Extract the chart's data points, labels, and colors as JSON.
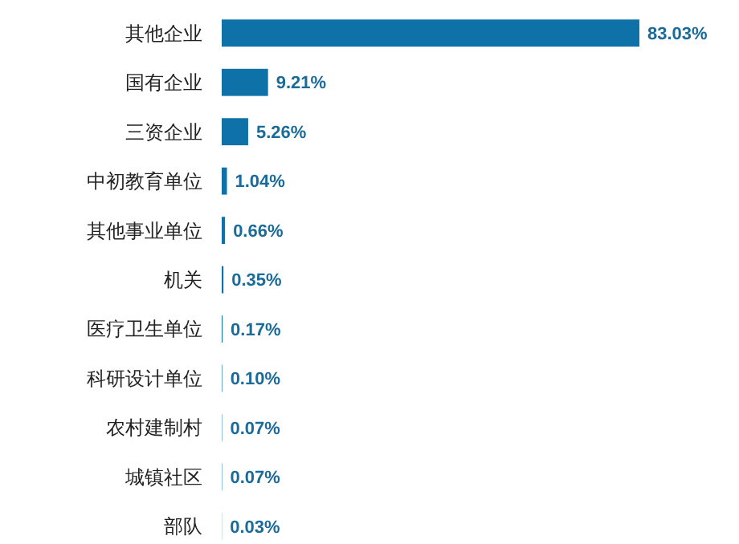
{
  "chart_data": {
    "type": "bar",
    "orientation": "horizontal",
    "categories": [
      "其他企业",
      "国有企业",
      "三资企业",
      "中初教育单位",
      "其他事业单位",
      "机关",
      "医疗卫生单位",
      "科研设计单位",
      "农村建制村",
      "城镇社区",
      "部队"
    ],
    "values": [
      83.03,
      9.21,
      5.26,
      1.04,
      0.66,
      0.35,
      0.17,
      0.1,
      0.07,
      0.07,
      0.03
    ],
    "value_labels": [
      "83.03%",
      "9.21%",
      "5.26%",
      "1.04%",
      "0.66%",
      "0.35%",
      "0.17%",
      "0.10%",
      "0.07%",
      "0.07%",
      "0.03%"
    ],
    "color": "#0e72a8"
  }
}
